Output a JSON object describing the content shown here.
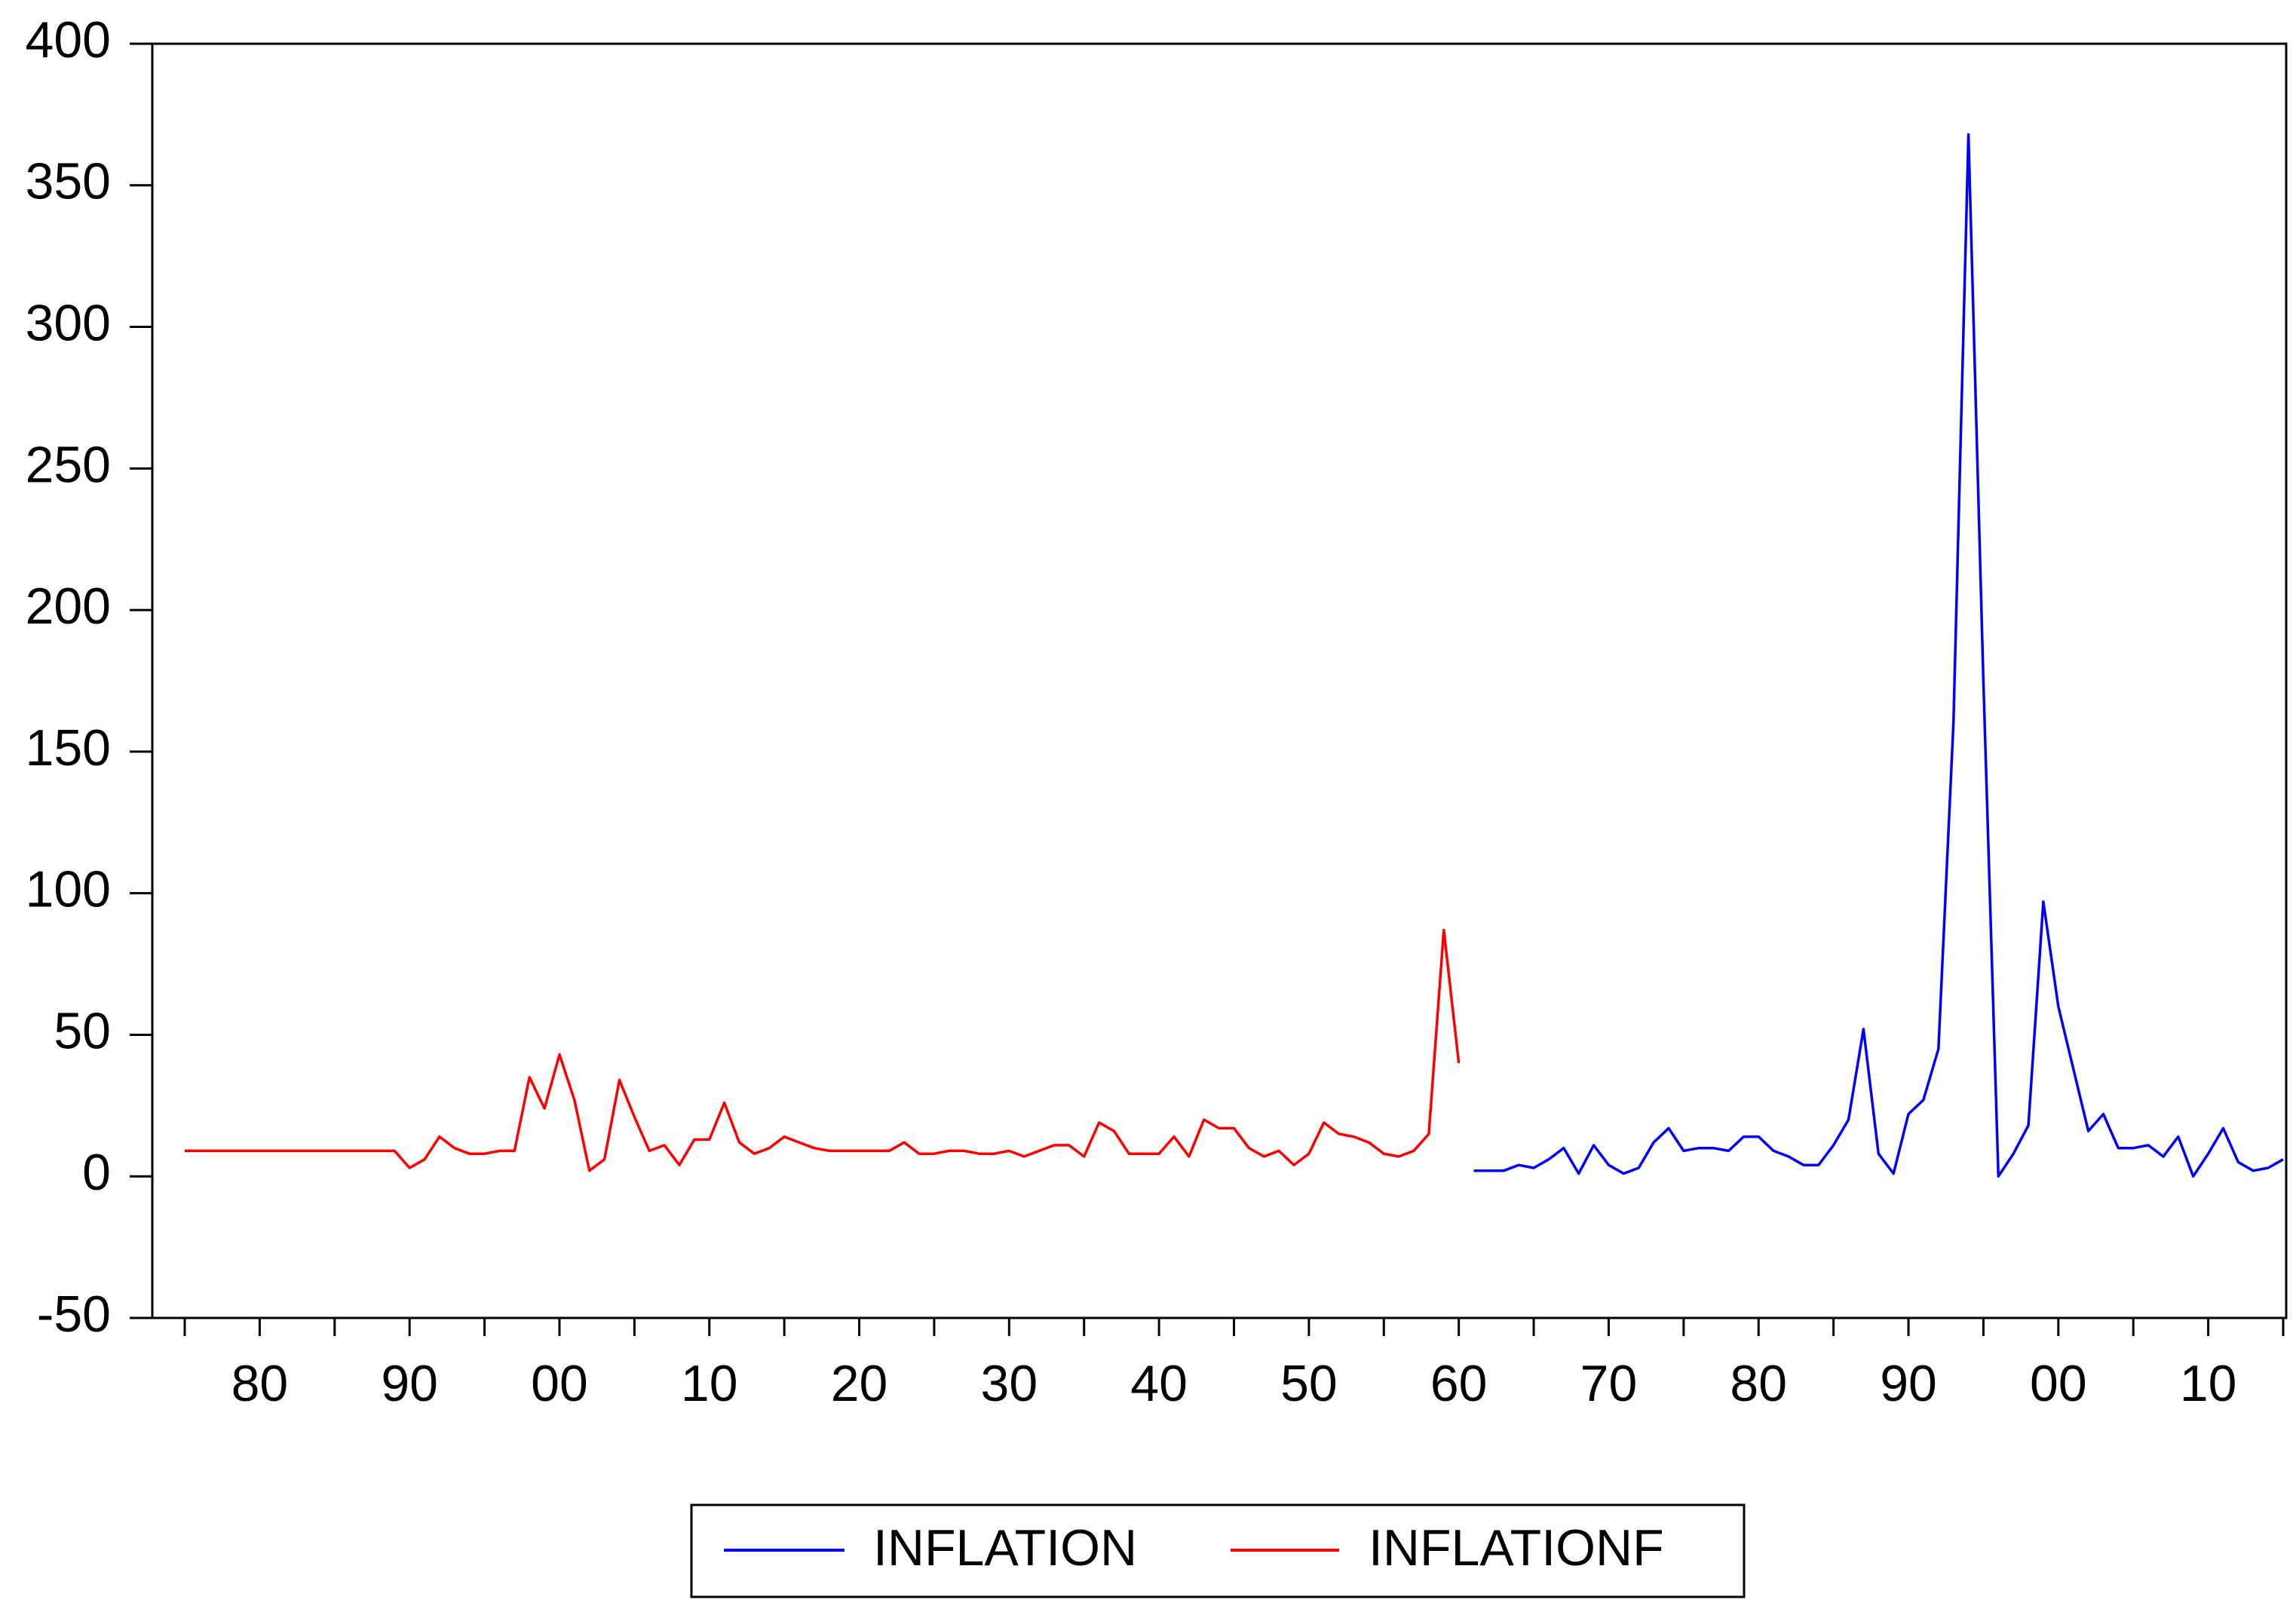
{
  "chart_data": {
    "type": "line",
    "categories": [
      null,
      null,
      null,
      null,
      null,
      "80",
      null,
      null,
      null,
      null,
      null,
      null,
      null,
      null,
      null,
      "90",
      null,
      null,
      null,
      null,
      null,
      null,
      null,
      null,
      null,
      "00",
      null,
      null,
      null,
      null,
      null,
      null,
      null,
      null,
      null,
      "10",
      null,
      null,
      null,
      null,
      null,
      null,
      null,
      null,
      null,
      "20",
      null,
      null,
      null,
      null,
      null,
      null,
      null,
      null,
      null,
      "30",
      null,
      null,
      null,
      null,
      null,
      null,
      null,
      null,
      null,
      "40",
      null,
      null,
      null,
      null,
      null,
      null,
      null,
      null,
      null,
      "50",
      null,
      null,
      null,
      null,
      null,
      null,
      null,
      null,
      null,
      "60",
      null,
      null,
      null,
      null,
      null,
      null,
      null,
      null,
      null,
      "70",
      null,
      null,
      null,
      null,
      null,
      null,
      null,
      null,
      null,
      "80",
      null,
      null,
      null,
      null,
      null,
      null,
      null,
      null,
      null,
      "90",
      null,
      null,
      null,
      null,
      null,
      null,
      null,
      null,
      null,
      "00",
      null,
      null,
      null,
      null,
      null,
      null,
      null,
      null,
      null,
      "10",
      null,
      null,
      null,
      null,
      null
    ],
    "series": [
      {
        "name": "INFLATION",
        "color": "#0000ff",
        "values": [
          null,
          null,
          null,
          null,
          null,
          null,
          null,
          null,
          null,
          null,
          null,
          null,
          null,
          null,
          null,
          null,
          null,
          null,
          null,
          null,
          null,
          null,
          null,
          null,
          null,
          null,
          null,
          null,
          null,
          null,
          null,
          null,
          null,
          null,
          null,
          null,
          null,
          null,
          null,
          null,
          null,
          null,
          null,
          null,
          null,
          null,
          null,
          null,
          null,
          null,
          null,
          null,
          null,
          null,
          null,
          null,
          null,
          null,
          null,
          null,
          null,
          null,
          null,
          null,
          null,
          null,
          null,
          null,
          null,
          null,
          null,
          null,
          null,
          null,
          null,
          null,
          null,
          null,
          null,
          null,
          null,
          null,
          null,
          null,
          null,
          null,
          2,
          2,
          2,
          4,
          3,
          6,
          10,
          1,
          11,
          4,
          1,
          3,
          12,
          17,
          9,
          10,
          10,
          9,
          14,
          14,
          9,
          7,
          4,
          4,
          11,
          20,
          52,
          8,
          1,
          22,
          27,
          45,
          160,
          368,
          175,
          0,
          8,
          18,
          97,
          60,
          38,
          16,
          22,
          10,
          10,
          11,
          7,
          14,
          0,
          8,
          17,
          5,
          2,
          3,
          6
        ]
      },
      {
        "name": "INFLATIONF",
        "color": "#ff0000",
        "values": [
          9,
          9,
          9,
          9,
          9,
          9,
          9,
          9,
          9,
          9,
          9,
          9,
          9,
          9,
          9,
          3,
          6,
          14,
          10,
          8,
          8,
          9,
          9,
          35,
          24,
          43,
          27,
          2,
          6,
          34,
          21,
          9,
          11,
          4,
          13,
          13,
          26,
          12,
          8,
          10,
          14,
          12,
          10,
          9,
          9,
          9,
          9,
          9,
          12,
          8,
          8,
          9,
          9,
          8,
          8,
          9,
          7,
          9,
          11,
          11,
          7,
          19,
          16,
          8,
          8,
          8,
          14,
          7,
          20,
          17,
          17,
          10,
          7,
          9,
          4,
          8,
          19,
          15,
          14,
          12,
          8,
          7,
          9,
          15,
          87,
          40,
          null,
          null,
          null,
          null,
          null,
          null,
          null,
          null,
          null,
          null,
          null,
          null,
          null,
          null,
          null,
          null,
          null,
          null,
          null,
          null,
          null,
          null,
          null,
          null,
          null,
          null,
          null,
          null,
          null,
          null,
          null,
          null,
          null,
          null,
          null,
          null,
          null,
          null,
          null,
          null,
          null,
          null,
          null,
          null,
          null,
          null,
          null,
          null,
          null,
          null,
          null,
          null,
          null,
          null,
          null
        ]
      }
    ],
    "ylim": [
      -50,
      400
    ],
    "yticks": [
      -50,
      0,
      50,
      100,
      150,
      200,
      250,
      300,
      350,
      400
    ]
  }
}
